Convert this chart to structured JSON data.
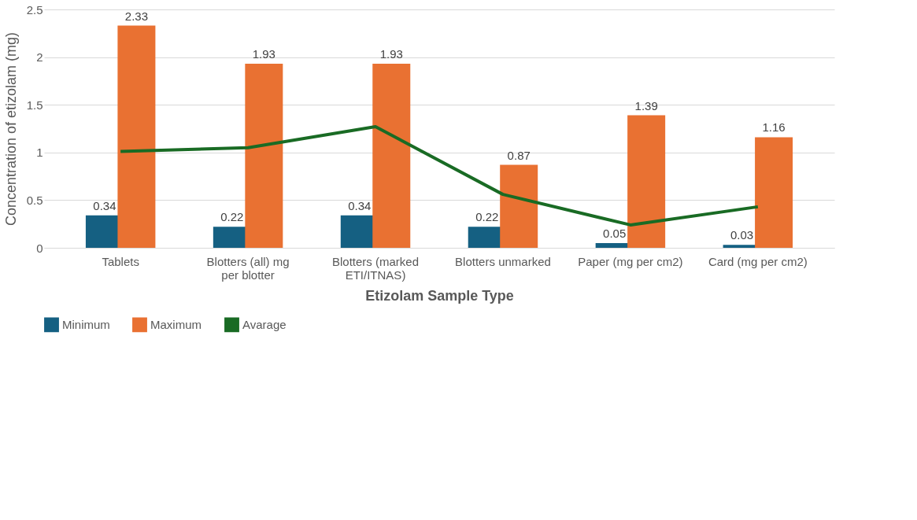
{
  "chart_data": {
    "type": "bar",
    "xlabel": "Etizolam Sample Type",
    "ylabel": "Concentration of etizolam (mg)",
    "categories": [
      "Tablets",
      "Blotters (all) mg per blotter",
      "Blotters (marked ETI/ITNAS)",
      "Blotters unmarked",
      "Paper (mg per cm2)",
      "Card (mg per cm2)"
    ],
    "series": [
      {
        "name": "Minimum",
        "color": "#156082",
        "values": [
          0.34,
          0.22,
          0.34,
          0.22,
          0.05,
          0.03
        ],
        "value_labels": [
          "0.34",
          "0.22",
          "0.34",
          "0.22",
          "0.05",
          "0.03"
        ]
      },
      {
        "name": "Maximum",
        "color": "#e97132",
        "values": [
          2.33,
          1.93,
          1.93,
          0.87,
          1.39,
          1.16
        ],
        "value_labels": [
          "2.33",
          "1.93",
          "1.93",
          "0.87",
          "1.39",
          "1.16"
        ]
      },
      {
        "name": "Avarage",
        "type": "line",
        "color": "#196b24",
        "values": [
          1.01,
          1.05,
          1.27,
          0.56,
          0.24,
          0.43
        ]
      }
    ],
    "ylim": [
      0,
      2.5
    ],
    "yticks": [
      0,
      0.5,
      1,
      1.5,
      2,
      2.5
    ],
    "grid": "y",
    "legend": "bottom",
    "marker": "none"
  }
}
